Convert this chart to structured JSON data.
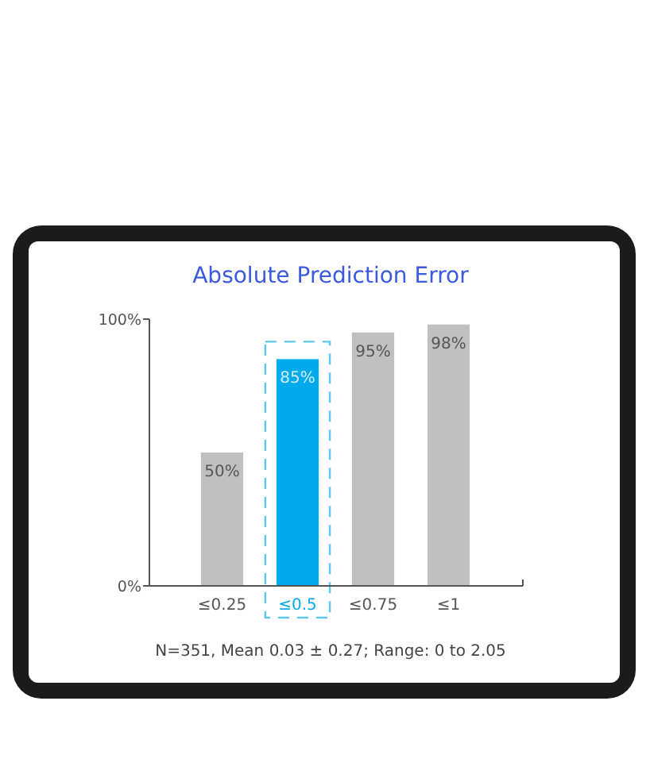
{
  "chart_data": {
    "type": "bar",
    "title": "Absolute Prediction Error",
    "categories": [
      "≤0.25",
      "≤0.5",
      "≤0.75",
      "≤1"
    ],
    "values": [
      50,
      85,
      95,
      98
    ],
    "colors": [
      "#c0c0c0",
      "#00aaeb",
      "#c0c0c0",
      "#c0c0c0"
    ],
    "value_labels": [
      "50%",
      "85%",
      "95%",
      "98%"
    ],
    "ylim": [
      0,
      100
    ],
    "yticks": [
      {
        "value": 0,
        "label": "0%"
      },
      {
        "value": 100,
        "label": "100%"
      }
    ],
    "grid": false,
    "annotations": [
      "N=351, Mean 0.03 ± 0.27; Range: 0 to 2.05"
    ]
  }
}
